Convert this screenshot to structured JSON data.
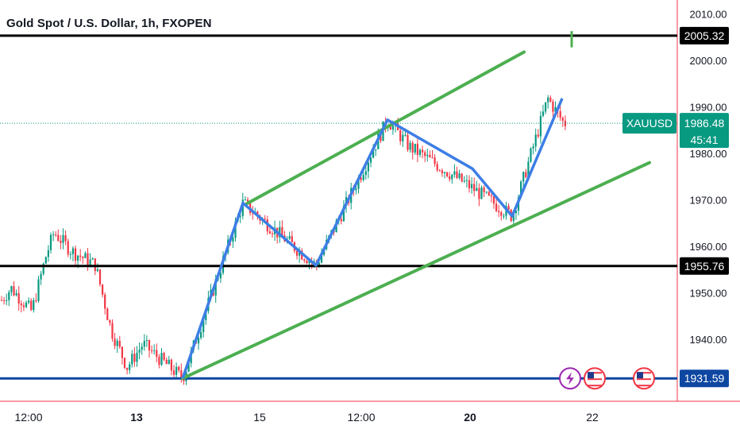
{
  "chart_data": {
    "type": "candlestick",
    "title": "Gold Spot / U.S. Dollar, 1h, FXOPEN",
    "symbol": "XAUUSD",
    "y_axis_ticks": [
      "2010.00",
      "2000.00",
      "1990.00",
      "1980.00",
      "1970.00",
      "1960.00",
      "1950.00",
      "1940.00"
    ],
    "ylim": [
      1926,
      2013
    ],
    "x_axis_ticks": [
      {
        "label": "12:00",
        "bold": false
      },
      {
        "label": "13",
        "bold": true
      },
      {
        "label": "15",
        "bold": false
      },
      {
        "label": "12:00",
        "bold": false
      },
      {
        "label": "20",
        "bold": true
      },
      {
        "label": "22",
        "bold": false
      }
    ],
    "horizontal_levels": [
      {
        "label": "2005.32",
        "value": 2005.32,
        "color": "#000000"
      },
      {
        "label": "1955.76",
        "value": 1955.76,
        "color": "#000000"
      },
      {
        "label": "1931.59",
        "value": 1931.59,
        "color": "#0d47a1"
      }
    ],
    "current_price": {
      "symbol": "XAUUSD",
      "price": "1986.48",
      "countdown": "45:41",
      "value": 1986.48,
      "color": "#089981"
    },
    "zigzag_pivots": [
      1931.59,
      1969.3,
      1955.9,
      1987.2,
      1976.7,
      1966.5,
      1991.8
    ],
    "channel_lines": [
      {
        "name": "upper",
        "start": 1969.0,
        "end": 2001.8
      },
      {
        "name": "lower",
        "start": 1931.6,
        "end": 1978.0
      }
    ],
    "colors": {
      "up": "#089981",
      "down": "#f23645",
      "zigzag": "#3d7ee6",
      "channel": "#4caf50"
    },
    "icons": [
      "lightning-event-icon",
      "us-flag-event-icon",
      "us-flag-event-icon"
    ]
  }
}
